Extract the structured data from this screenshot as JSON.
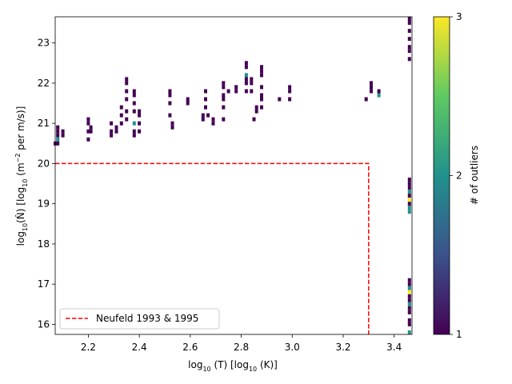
{
  "chart_data": {
    "type": "heatmap",
    "xlabel": {
      "base": "log",
      "sub1": "10",
      "mid": " (T) [",
      "base2": "log",
      "sub2": "10",
      "tail": " (K)]"
    },
    "ylabel": {
      "base": "log",
      "sub1": "10",
      "mid": "(N̂) [",
      "base2": "log",
      "sub2": "10",
      "mid2": " (m",
      "sup": "−2",
      "tail": " per m/s)]"
    },
    "xlim": [
      2.07,
      3.47
    ],
    "ylim": [
      15.75,
      23.65
    ],
    "x_ticks": [
      2.2,
      2.4,
      2.6,
      2.8,
      3.0,
      3.2,
      3.4
    ],
    "x_tick_labels": [
      "2.2",
      "2.4",
      "2.6",
      "2.8",
      "3.0",
      "3.2",
      "3.4"
    ],
    "y_ticks": [
      16,
      17,
      18,
      19,
      20,
      21,
      22,
      23
    ],
    "y_tick_labels": [
      "16",
      "17",
      "18",
      "19",
      "20",
      "21",
      "22",
      "23"
    ],
    "colorbar": {
      "label": "# of outliers",
      "range": [
        1,
        3
      ],
      "ticks": [
        1,
        2,
        3
      ],
      "tick_labels": [
        "1",
        "2",
        "3"
      ],
      "colormap": [
        "#440154",
        "#3b528b",
        "#21918c",
        "#5ec962",
        "#fde725"
      ]
    },
    "reference_line": {
      "name": "Neufeld 1993 & 1995",
      "color": "#ff0000",
      "points": [
        [
          2.07,
          20.0
        ],
        [
          3.3,
          20.0
        ],
        [
          3.3,
          15.75
        ]
      ]
    },
    "legend": {
      "position": "lower-left",
      "entries": [
        "Neufeld 1993 & 1995"
      ]
    },
    "cells": [
      [
        2.08,
        20.9,
        1
      ],
      [
        2.08,
        20.8,
        1
      ],
      [
        2.08,
        20.7,
        1
      ],
      [
        2.08,
        20.6,
        2
      ],
      [
        2.08,
        20.5,
        1
      ],
      [
        2.07,
        20.5,
        1
      ],
      [
        2.1,
        20.8,
        1
      ],
      [
        2.1,
        20.7,
        1
      ],
      [
        2.2,
        21.1,
        1
      ],
      [
        2.2,
        21.0,
        1
      ],
      [
        2.2,
        20.8,
        1
      ],
      [
        2.2,
        20.6,
        1
      ],
      [
        2.21,
        20.9,
        1
      ],
      [
        2.21,
        20.8,
        1
      ],
      [
        2.29,
        21.0,
        1
      ],
      [
        2.29,
        20.8,
        1
      ],
      [
        2.29,
        20.7,
        1
      ],
      [
        2.31,
        20.9,
        1
      ],
      [
        2.31,
        20.8,
        1
      ],
      [
        2.33,
        21.4,
        1
      ],
      [
        2.33,
        21.2,
        1
      ],
      [
        2.33,
        21.0,
        1
      ],
      [
        2.35,
        22.1,
        1
      ],
      [
        2.35,
        22.0,
        1
      ],
      [
        2.35,
        21.8,
        1
      ],
      [
        2.35,
        21.6,
        1
      ],
      [
        2.35,
        21.3,
        1
      ],
      [
        2.35,
        21.1,
        1
      ],
      [
        2.38,
        21.8,
        1
      ],
      [
        2.38,
        21.7,
        1
      ],
      [
        2.38,
        21.5,
        1
      ],
      [
        2.38,
        21.3,
        1
      ],
      [
        2.38,
        21.0,
        2
      ],
      [
        2.38,
        20.8,
        1
      ],
      [
        2.38,
        20.7,
        1
      ],
      [
        2.4,
        21.3,
        1
      ],
      [
        2.4,
        21.2,
        1
      ],
      [
        2.4,
        21.0,
        1
      ],
      [
        2.4,
        20.8,
        1
      ],
      [
        2.52,
        21.8,
        1
      ],
      [
        2.52,
        21.7,
        1
      ],
      [
        2.52,
        21.5,
        1
      ],
      [
        2.52,
        21.2,
        1
      ],
      [
        2.53,
        21.0,
        1
      ],
      [
        2.53,
        20.9,
        1
      ],
      [
        2.59,
        21.6,
        1
      ],
      [
        2.59,
        21.5,
        1
      ],
      [
        2.65,
        21.2,
        1
      ],
      [
        2.65,
        21.1,
        1
      ],
      [
        2.66,
        21.8,
        1
      ],
      [
        2.66,
        21.6,
        1
      ],
      [
        2.66,
        21.4,
        1
      ],
      [
        2.67,
        21.2,
        1
      ],
      [
        2.69,
        21.1,
        1
      ],
      [
        2.69,
        21.0,
        1
      ],
      [
        2.73,
        22.0,
        1
      ],
      [
        2.73,
        21.9,
        1
      ],
      [
        2.73,
        21.7,
        1
      ],
      [
        2.73,
        21.6,
        1
      ],
      [
        2.73,
        21.4,
        1
      ],
      [
        2.73,
        21.1,
        1
      ],
      [
        2.75,
        21.8,
        1
      ],
      [
        2.78,
        21.9,
        1
      ],
      [
        2.78,
        21.8,
        1
      ],
      [
        2.82,
        22.5,
        1
      ],
      [
        2.82,
        22.4,
        1
      ],
      [
        2.82,
        22.2,
        2
      ],
      [
        2.82,
        22.1,
        1
      ],
      [
        2.82,
        22.0,
        1
      ],
      [
        2.82,
        21.8,
        1
      ],
      [
        2.84,
        22.1,
        1
      ],
      [
        2.84,
        22.0,
        1
      ],
      [
        2.84,
        21.8,
        1
      ],
      [
        2.85,
        21.1,
        1
      ],
      [
        2.86,
        21.4,
        1
      ],
      [
        2.86,
        21.3,
        1
      ],
      [
        2.88,
        22.4,
        1
      ],
      [
        2.88,
        22.3,
        1
      ],
      [
        2.88,
        22.2,
        1
      ],
      [
        2.88,
        21.9,
        1
      ],
      [
        2.88,
        21.7,
        1
      ],
      [
        2.88,
        21.6,
        1
      ],
      [
        2.88,
        21.4,
        1
      ],
      [
        2.95,
        21.6,
        1
      ],
      [
        2.99,
        21.9,
        1
      ],
      [
        2.99,
        21.8,
        1
      ],
      [
        2.99,
        21.6,
        1
      ],
      [
        3.29,
        21.6,
        1
      ],
      [
        3.31,
        22.0,
        1
      ],
      [
        3.31,
        21.9,
        1
      ],
      [
        3.31,
        21.8,
        1
      ],
      [
        3.34,
        21.8,
        1
      ],
      [
        3.34,
        21.7,
        2
      ],
      [
        3.46,
        23.6,
        1
      ],
      [
        3.46,
        23.5,
        1
      ],
      [
        3.46,
        23.3,
        1
      ],
      [
        3.46,
        23.1,
        1
      ],
      [
        3.46,
        22.9,
        1
      ],
      [
        3.46,
        22.8,
        1
      ],
      [
        3.46,
        22.6,
        1
      ],
      [
        3.46,
        19.6,
        1
      ],
      [
        3.46,
        19.5,
        1
      ],
      [
        3.46,
        19.4,
        1
      ],
      [
        3.46,
        19.3,
        2
      ],
      [
        3.46,
        19.2,
        1
      ],
      [
        3.46,
        19.1,
        3
      ],
      [
        3.46,
        19.0,
        1
      ],
      [
        3.46,
        18.9,
        2
      ],
      [
        3.46,
        18.8,
        2
      ],
      [
        3.46,
        17.1,
        1
      ],
      [
        3.46,
        17.0,
        1
      ],
      [
        3.46,
        16.9,
        2
      ],
      [
        3.46,
        16.8,
        3
      ],
      [
        3.46,
        16.7,
        1
      ],
      [
        3.46,
        16.6,
        1
      ],
      [
        3.46,
        16.5,
        2
      ],
      [
        3.46,
        16.4,
        1
      ],
      [
        3.46,
        16.3,
        1
      ],
      [
        3.46,
        16.1,
        1
      ],
      [
        3.46,
        16.0,
        1
      ],
      [
        3.46,
        15.8,
        2
      ]
    ]
  }
}
